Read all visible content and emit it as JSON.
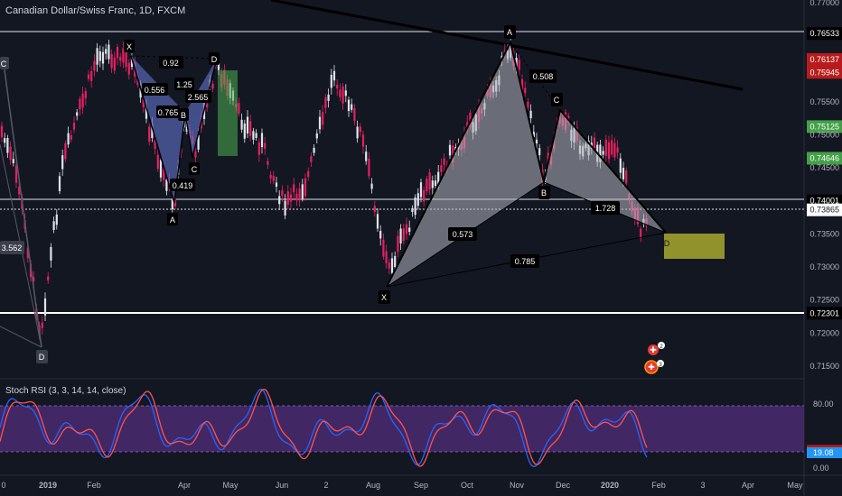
{
  "header": {
    "symbol_title": "Canadian Dollar/Swiss Franc, 1D, FXCM",
    "indicator_title": "Stoch RSI (3, 3, 14, 14, close)"
  },
  "colors": {
    "background": "#131722",
    "up_candle": "#e0e3eb",
    "down_candle": "#e91e63",
    "pattern_right_fill": "#b2b5be",
    "pattern_left_fill": "#5c6bc0",
    "target_box": "#c8c830",
    "stoch_band": "#4a2a6e",
    "stoch_k": "#2962ff",
    "stoch_d": "#ff5252"
  },
  "price_axis": {
    "ticks": [
      "0.77000",
      "0.76533",
      "0.76141",
      "0.76137",
      "0.75958",
      "0.75945",
      "0.75500",
      "0.75125",
      "0.75000",
      "0.74646",
      "0.74500",
      "0.74001",
      "0.73865",
      "0.73500",
      "0.73000",
      "0.72500",
      "0.72301",
      "0.72000",
      "0.71500"
    ],
    "badges": [
      {
        "label": "0.76533",
        "style": "dark"
      },
      {
        "label": "0.76141",
        "style": "red"
      },
      {
        "label": "0.76137",
        "style": "red"
      },
      {
        "label": "0.75958",
        "style": "red"
      },
      {
        "label": "0.75945",
        "style": "red"
      },
      {
        "label": "0.75125",
        "style": "green"
      },
      {
        "label": "0.74646",
        "style": "green"
      },
      {
        "label": "0.74001",
        "style": "dark"
      },
      {
        "label": "0.73865",
        "style": "white"
      },
      {
        "label": "0.72301",
        "style": "dark"
      }
    ]
  },
  "stoch_axis": {
    "ticks": [
      "80.00",
      "0.00"
    ],
    "badges": [
      {
        "label": "22.15",
        "style": "red"
      },
      {
        "label": "19.08",
        "style": "blue"
      }
    ]
  },
  "time_axis": {
    "labels": [
      "0",
      "2019",
      "Feb",
      "Apr",
      "May",
      "Jun",
      "2",
      "Aug",
      "Sep",
      "Oct",
      "Nov",
      "Dec",
      "2020",
      "Feb",
      "3",
      "Apr",
      "May"
    ]
  },
  "pattern_labels": {
    "left": {
      "X": "X",
      "A": "A",
      "B": "B",
      "C": "C",
      "D": "D",
      "ratio_xab": "0.556",
      "ratio_abc": "0.419",
      "ratio_bcd": "1.25",
      "ratio_xad": "0.92",
      "ratio_xbd": "0.765",
      "ratio_cd": "2.565"
    },
    "right": {
      "X": "X",
      "A": "A",
      "B": "B",
      "C": "C",
      "D": "D",
      "ratio_xab": "0.573",
      "ratio_abc": "0.508",
      "ratio_bcd": "1.728",
      "ratio_xad": "0.785"
    },
    "far_left": {
      "C": "C",
      "D": "D",
      "ratio": "3.562"
    }
  },
  "events": {
    "flag_1_count": "2",
    "flag_2_count": "3"
  }
}
